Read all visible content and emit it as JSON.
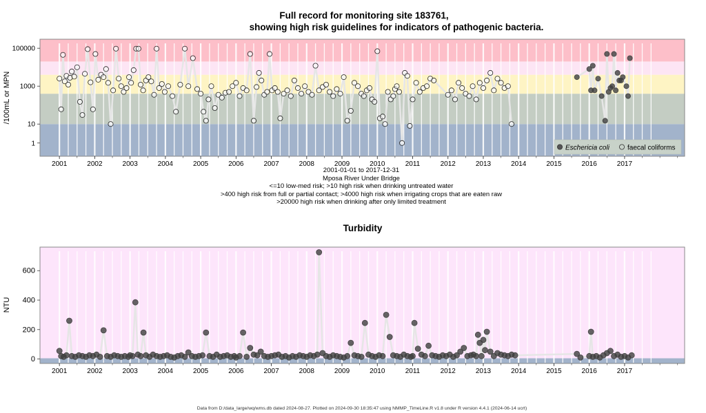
{
  "chart_data": [
    {
      "type": "scatter",
      "title_line1": "Full record for monitoring site 183761,",
      "title_line2": "showing high risk guidelines for indicators of pathogenic bacteria.",
      "ylabel": "/100mL or MPN",
      "y_scale": "log",
      "ylim": [
        0.2,
        300000
      ],
      "xlim": [
        2000.45,
        2018.7
      ],
      "x_ticks": [
        2001,
        2002,
        2003,
        2004,
        2005,
        2006,
        2007,
        2008,
        2009,
        2010,
        2011,
        2012,
        2013,
        2014,
        2015,
        2016,
        2017
      ],
      "y_ticks": [
        1,
        10,
        1000,
        100000
      ],
      "y_tick_labels": [
        "1",
        "10",
        "1000",
        "100000"
      ],
      "guideline_bands": [
        {
          "from": 0.2,
          "to": 10,
          "color": "#a2b3cb"
        },
        {
          "from": 10,
          "to": 400,
          "color": "#c4cdc3"
        },
        {
          "from": 400,
          "to": 4000,
          "color": "#fef4c4"
        },
        {
          "from": 4000,
          "to": 20000,
          "color": "#fde5f4"
        },
        {
          "from": 20000,
          "to": 300000,
          "color": "#fdbfc9"
        }
      ],
      "legend_position": "bottom-right",
      "legend": [
        {
          "name": "Eschericia coli",
          "marker": "filled"
        },
        {
          "name": "faecal coliforms",
          "marker": "open"
        }
      ],
      "caption_lines": [
        "2001-01-01 to 2017-12-31",
        "Mposa River Under Bridge",
        "<=10 low-med risk; >10 high risk when drinking untreated water",
        ">400 high risk from full or partial contact; >4000 high risk when irrigating crops that are eaten raw",
        ">20000 high risk when drinking after only limited treatment"
      ],
      "series": [
        {
          "name": "faecal coliforms",
          "x": [
            2001.0,
            2001.05,
            2001.1,
            2001.15,
            2001.2,
            2001.25,
            2001.3,
            2001.35,
            2001.42,
            2001.5,
            2001.58,
            2001.65,
            2001.72,
            2001.8,
            2001.88,
            2001.95,
            2002.02,
            2002.1,
            2002.18,
            2002.25,
            2002.32,
            2002.38,
            2002.45,
            2002.52,
            2002.6,
            2002.68,
            2002.75,
            2002.82,
            2002.9,
            2002.97,
            2003.03,
            2003.1,
            2003.17,
            2003.24,
            2003.3,
            2003.37,
            2003.45,
            2003.52,
            2003.6,
            2003.68,
            2003.75,
            2003.82,
            2003.9,
            2003.98,
            2004.08,
            2004.2,
            2004.3,
            2004.42,
            2004.55,
            2004.65,
            2004.78,
            2004.9,
            2005.0,
            2005.08,
            2005.15,
            2005.22,
            2005.3,
            2005.4,
            2005.5,
            2005.6,
            2005.7,
            2005.8,
            2005.9,
            2006.0,
            2006.1,
            2006.2,
            2006.3,
            2006.4,
            2006.5,
            2006.58,
            2006.65,
            2006.72,
            2006.8,
            2006.88,
            2006.95,
            2007.02,
            2007.1,
            2007.18,
            2007.25,
            2007.35,
            2007.45,
            2007.55,
            2007.65,
            2007.75,
            2007.85,
            2007.95,
            2008.05,
            2008.15,
            2008.25,
            2008.35,
            2008.45,
            2008.55,
            2008.65,
            2008.75,
            2008.85,
            2008.95,
            2009.05,
            2009.15,
            2009.25,
            2009.35,
            2009.45,
            2009.55,
            2009.62,
            2009.7,
            2009.78,
            2009.85,
            2009.92,
            2010.0,
            2010.07,
            2010.15,
            2010.22,
            2010.3,
            2010.38,
            2010.45,
            2010.5,
            2010.55,
            2010.62,
            2010.7,
            2010.78,
            2010.85,
            2010.92,
            2011.0,
            2011.1,
            2011.2,
            2011.3,
            2011.4,
            2011.5,
            2011.6,
            2012.0,
            2012.1,
            2012.2,
            2012.3,
            2012.4,
            2012.5,
            2012.6,
            2012.7,
            2012.8,
            2012.9,
            2013.0,
            2013.1,
            2013.2,
            2013.3,
            2013.4,
            2013.5,
            2013.6,
            2013.7,
            2013.8
          ],
          "y": [
            2500,
            60,
            45000,
            1800,
            3500,
            1200,
            2800,
            6000,
            3200,
            10000,
            150,
            30,
            4500,
            90000,
            1600,
            60,
            50000,
            2200,
            4000,
            3000,
            8000,
            1500,
            10,
            600,
            95000,
            2500,
            1000,
            500,
            800,
            3000,
            1500,
            7000,
            95000,
            95000,
            1200,
            600,
            2000,
            3000,
            1800,
            350,
            95000,
            800,
            1300,
            500,
            1000,
            300,
            45,
            1200,
            95000,
            1000,
            30000,
            700,
            400,
            45,
            15,
            200,
            1000,
            70,
            350,
            250,
            450,
            500,
            1000,
            1500,
            300,
            800,
            600,
            50000,
            15,
            900,
            5000,
            2000,
            350,
            500,
            50000,
            600,
            800,
            500,
            20,
            400,
            600,
            300,
            2000,
            800,
            400,
            1000,
            500,
            350,
            12000,
            600,
            900,
            1200,
            500,
            300,
            700,
            400,
            3000,
            15,
            50,
            1500,
            1000,
            400,
            300,
            600,
            800,
            200,
            150,
            70000,
            20,
            25,
            10,
            500,
            200,
            300,
            700,
            1000,
            500,
            1,
            5000,
            3500,
            8,
            200,
            1500,
            500,
            800,
            1000,
            2500,
            2000,
            350,
            600,
            200,
            1500,
            800,
            400,
            300,
            1000,
            200,
            1500,
            800,
            2000,
            5000,
            600,
            2500,
            1500,
            800,
            1000,
            10
          ]
        },
        {
          "name": "Eschericia coli",
          "x": [
            2015.65,
            2016.0,
            2016.05,
            2016.1,
            2016.15,
            2016.25,
            2016.35,
            2016.45,
            2016.5,
            2016.55,
            2016.6,
            2016.65,
            2016.7,
            2016.75,
            2016.8,
            2016.85,
            2016.9,
            2016.95,
            2017.05,
            2017.1,
            2017.15
          ],
          "y": [
            3000,
            8000,
            600,
            12000,
            600,
            2500,
            300,
            15,
            50000,
            500,
            800,
            1000,
            50000,
            600,
            5000,
            2000,
            2000,
            3000,
            1000,
            300,
            30000
          ]
        }
      ]
    },
    {
      "type": "scatter",
      "title": "Turbidity",
      "ylabel": "NTU",
      "ylim": [
        -30,
        760
      ],
      "xlim": [
        2000.45,
        2018.7
      ],
      "x_ticks": [
        2001,
        2002,
        2003,
        2004,
        2005,
        2006,
        2007,
        2008,
        2009,
        2010,
        2011,
        2012,
        2013,
        2014,
        2015,
        2016,
        2017
      ],
      "y_ticks": [
        0,
        200,
        400,
        600
      ],
      "guideline_bands": [
        {
          "from": -30,
          "to": 5,
          "color": "#a2b3cb"
        },
        {
          "from": 5,
          "to": 760,
          "color": "#fde5fb"
        }
      ],
      "series": [
        {
          "name": "turbidity",
          "x": [
            2001.0,
            2001.05,
            2001.12,
            2001.2,
            2001.28,
            2001.35,
            2001.45,
            2001.55,
            2001.65,
            2001.75,
            2001.85,
            2001.95,
            2002.05,
            2002.15,
            2002.25,
            2002.35,
            2002.45,
            2002.55,
            2002.65,
            2002.75,
            2002.85,
            2002.95,
            2003.0,
            2003.07,
            2003.15,
            2003.22,
            2003.3,
            2003.38,
            2003.45,
            2003.55,
            2003.65,
            2003.75,
            2003.85,
            2003.95,
            2004.05,
            2004.15,
            2004.25,
            2004.35,
            2004.45,
            2004.55,
            2004.65,
            2004.75,
            2004.85,
            2004.95,
            2005.05,
            2005.15,
            2005.25,
            2005.35,
            2005.45,
            2005.55,
            2005.65,
            2005.75,
            2005.85,
            2005.95,
            2006.0,
            2006.1,
            2006.2,
            2006.3,
            2006.4,
            2006.5,
            2006.6,
            2006.7,
            2006.8,
            2006.9,
            2007.0,
            2007.1,
            2007.2,
            2007.3,
            2007.4,
            2007.5,
            2007.6,
            2007.7,
            2007.8,
            2007.9,
            2008.0,
            2008.1,
            2008.2,
            2008.3,
            2008.35,
            2008.45,
            2008.55,
            2008.65,
            2008.75,
            2008.85,
            2008.95,
            2009.05,
            2009.15,
            2009.25,
            2009.35,
            2009.45,
            2009.55,
            2009.65,
            2009.75,
            2009.85,
            2009.95,
            2010.05,
            2010.15,
            2010.25,
            2010.35,
            2010.45,
            2010.55,
            2010.65,
            2010.75,
            2010.85,
            2010.95,
            2011.0,
            2011.05,
            2011.15,
            2011.25,
            2011.35,
            2011.45,
            2011.55,
            2011.65,
            2011.75,
            2011.85,
            2011.95,
            2012.05,
            2012.15,
            2012.25,
            2012.35,
            2012.45,
            2012.55,
            2012.65,
            2012.72,
            2012.8,
            2012.85,
            2012.9,
            2012.95,
            2013.0,
            2013.05,
            2013.1,
            2013.2,
            2013.3,
            2013.4,
            2013.5,
            2013.6,
            2013.7,
            2013.8,
            2013.9,
            2015.65,
            2015.75,
            2016.0,
            2016.05,
            2016.1,
            2016.2,
            2016.3,
            2016.4,
            2016.5,
            2016.6,
            2016.7,
            2016.8,
            2016.9,
            2017.0,
            2017.1,
            2017.2
          ],
          "y": [
            55,
            20,
            15,
            25,
            260,
            20,
            15,
            25,
            20,
            15,
            25,
            20,
            30,
            15,
            195,
            20,
            15,
            25,
            20,
            15,
            20,
            15,
            25,
            20,
            385,
            30,
            20,
            180,
            25,
            15,
            30,
            20,
            15,
            20,
            25,
            15,
            10,
            20,
            25,
            15,
            45,
            20,
            15,
            20,
            25,
            180,
            20,
            15,
            30,
            15,
            20,
            25,
            15,
            20,
            10,
            20,
            180,
            15,
            75,
            30,
            25,
            50,
            20,
            15,
            20,
            25,
            30,
            15,
            20,
            10,
            20,
            15,
            25,
            20,
            15,
            25,
            20,
            30,
            725,
            40,
            20,
            15,
            25,
            20,
            15,
            10,
            20,
            110,
            25,
            20,
            15,
            245,
            30,
            20,
            15,
            25,
            20,
            300,
            150,
            25,
            20,
            15,
            30,
            20,
            15,
            20,
            245,
            70,
            30,
            20,
            90,
            25,
            20,
            15,
            25,
            20,
            30,
            15,
            25,
            50,
            75,
            20,
            25,
            30,
            20,
            165,
            110,
            20,
            130,
            60,
            185,
            50,
            20,
            40,
            30,
            25,
            20,
            30,
            25,
            35,
            10,
            20,
            185,
            15,
            20,
            10,
            25,
            40,
            55,
            20,
            30,
            15,
            20,
            10,
            25
          ]
        }
      ]
    }
  ],
  "footer": "Data from D:/data_large/wq/wms.db dated 2024-08-27. Plotted on 2024-09-30 18:35:47 using NMMP_TimeLine.R v1.8 under R version 4.4.1 (2024-06-14 ucrt)"
}
